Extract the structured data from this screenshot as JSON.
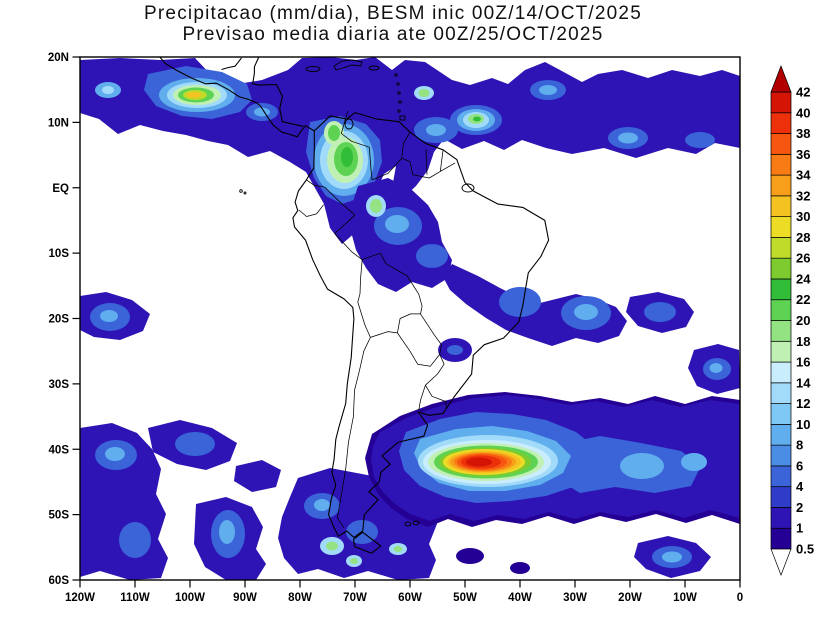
{
  "title": {
    "line1": "Precipitacao (mm/dia), BESM inic 00Z/14/OCT/2025",
    "line2": "Previsao media diaria ate 00Z/25/OCT/2025"
  },
  "axes": {
    "lat_labels": [
      "20N",
      "10N",
      "EQ",
      "10S",
      "20S",
      "30S",
      "40S",
      "50S",
      "60S"
    ],
    "lon_labels": [
      "120W",
      "110W",
      "100W",
      "90W",
      "80W",
      "70W",
      "60W",
      "50W",
      "40W",
      "30W",
      "20W",
      "10W",
      "0"
    ]
  },
  "colorbar": {
    "levels": [
      "0.5",
      "1",
      "2",
      "4",
      "6",
      "8",
      "10",
      "12",
      "14",
      "16",
      "18",
      "20",
      "22",
      "24",
      "26",
      "28",
      "30",
      "32",
      "34",
      "36",
      "38",
      "40",
      "42"
    ],
    "segment_colors": [
      "#250094",
      "#2e14b4",
      "#2f3cc8",
      "#3a64d8",
      "#4b8ce4",
      "#60aeee",
      "#7fc8f5",
      "#a2dbf9",
      "#c9edfc",
      "#c0f0b4",
      "#94e383",
      "#5ed253",
      "#32bd39",
      "#7ecb2f",
      "#c0da2a",
      "#ecdc26",
      "#f5c321",
      "#f79e1b",
      "#f87b15",
      "#f6560f",
      "#ec300a",
      "#d41405"
    ],
    "over_color": "#b20000",
    "under_color": "#ffffff"
  },
  "chart_data": {
    "type": "heatmap",
    "subtype": "filled-contour-precipitation-map",
    "title": "Precipitacao (mm/dia), BESM inic 00Z/14/OCT/2025",
    "subtitle": "Previsao media diaria ate 00Z/25/OCT/2025",
    "variable": "Precipitacao (mm/dia)",
    "model": "BESM",
    "init_time": "00Z/14/OCT/2025",
    "valid_through": "00Z/25/OCT/2025",
    "lon_range": [
      "120W",
      "0"
    ],
    "lat_range": [
      "60S",
      "20N"
    ],
    "grid": false,
    "legend_position": "right-colorbar",
    "contour_levels_mm_day": [
      0.5,
      1,
      2,
      4,
      6,
      8,
      10,
      12,
      14,
      16,
      18,
      20,
      22,
      24,
      26,
      28,
      30,
      32,
      34,
      36,
      38,
      40,
      42
    ],
    "features": [
      {
        "name": "ITCZ band",
        "lat": "5N-12N",
        "lon": "120W-0",
        "max_mm_day": 10
      },
      {
        "name": "East Pacific convective cell",
        "lat": "8N",
        "lon": "100W",
        "max_mm_day": 30
      },
      {
        "name": "Colombia / Panama maximum",
        "lat": "3N-8N",
        "lon": "77W",
        "max_mm_day": 24
      },
      {
        "name": "Guyana coastal cell",
        "lat": "8N",
        "lon": "48W",
        "max_mm_day": 22
      },
      {
        "name": "Amazon basin",
        "lat": "0-10S",
        "lon": "72W-48W",
        "max_mm_day": 8
      },
      {
        "name": "Southeast Brazil / South Atlantic convergence band",
        "lat": "12S-25S",
        "lon": "58W-30W",
        "max_mm_day": 8
      },
      {
        "name": "South Atlantic storm-track maximum",
        "lat": "43S",
        "lon": "52W",
        "max_mm_day": 42
      },
      {
        "name": "Southern Chile coastal cells",
        "lat": "47S-55S",
        "lon": "75W",
        "max_mm_day": 20
      },
      {
        "name": "Southeast Pacific patches",
        "lat": "20S-60S",
        "lon": "120W-90W",
        "max_mm_day": 6
      },
      {
        "name": "Far South Atlantic cell",
        "lat": "57S",
        "lon": "12W",
        "max_mm_day": 8
      }
    ]
  }
}
